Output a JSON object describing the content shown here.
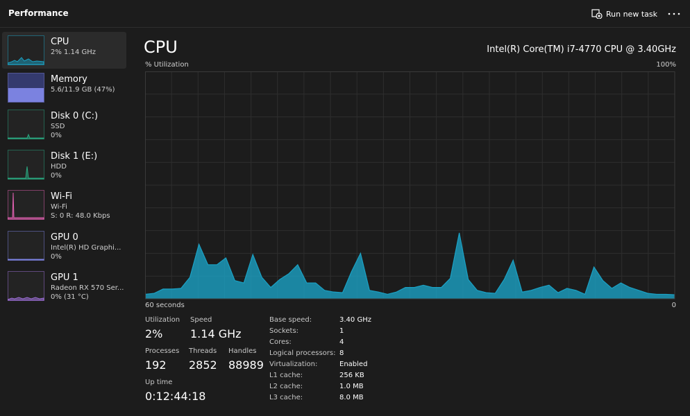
{
  "header": {
    "title": "Performance",
    "action": "Run new task"
  },
  "sidebar": [
    {
      "name": "CPU",
      "lines": [
        "2% 1.14 GHz"
      ]
    },
    {
      "name": "Memory",
      "lines": [
        "5.6/11.9 GB (47%)"
      ]
    },
    {
      "name": "Disk 0 (C:)",
      "lines": [
        "SSD",
        "0%"
      ]
    },
    {
      "name": "Disk 1 (E:)",
      "lines": [
        "HDD",
        "0%"
      ]
    },
    {
      "name": "Wi-Fi",
      "lines": [
        "Wi-Fi",
        "S: 0 R: 48.0 Kbps"
      ]
    },
    {
      "name": "GPU 0",
      "lines": [
        "Intel(R) HD Graphi...",
        "0%"
      ]
    },
    {
      "name": "GPU 1",
      "lines": [
        "Radeon RX 570 Ser...",
        "0% (31 °C)"
      ]
    }
  ],
  "main": {
    "title": "CPU",
    "processor": "Intel(R) Core(TM) i7-4770 CPU @ 3.40GHz"
  },
  "chart_data": {
    "type": "area",
    "y_label": "% Utilization",
    "y_max_label": "100%",
    "x_left_label": "60 seconds",
    "x_right_label": "0",
    "ylim": [
      0,
      100
    ],
    "grid": true,
    "color": "#1ba1c4",
    "values": [
      2,
      2.4,
      4.3,
      4.3,
      4.6,
      9.5,
      24,
      15,
      15,
      18,
      8,
      7,
      19.5,
      9.5,
      5,
      8.5,
      11,
      15,
      7,
      7,
      3.7,
      3,
      2.7,
      12,
      20,
      3.7,
      3,
      2,
      3,
      5,
      5,
      6,
      5,
      5,
      9,
      29,
      8.5,
      3.7,
      2.7,
      2.4,
      8.5,
      17,
      3,
      3.7,
      5,
      6,
      2.7,
      4.6,
      3.7,
      2,
      14,
      8,
      4.6,
      7,
      5,
      3.7,
      2.4,
      2,
      2,
      1.8
    ]
  },
  "stats": [
    {
      "label": "Utilization",
      "value": "2%"
    },
    {
      "label": "Speed",
      "value": "1.14 GHz"
    },
    {
      "label": "Processes",
      "value": "192"
    },
    {
      "label": "Threads",
      "value": "2852"
    },
    {
      "label": "Handles",
      "value": "88989"
    },
    {
      "label": "Up time",
      "value": "0:12:44:18"
    }
  ],
  "details": [
    [
      "Base speed:",
      "3.40 GHz"
    ],
    [
      "Sockets:",
      "1"
    ],
    [
      "Cores:",
      "4"
    ],
    [
      "Logical processors:",
      "8"
    ],
    [
      "Virtualization:",
      "Enabled"
    ],
    [
      "L1 cache:",
      "256 KB"
    ],
    [
      "L2 cache:",
      "1.0 MB"
    ],
    [
      "L3 cache:",
      "8.0 MB"
    ]
  ]
}
